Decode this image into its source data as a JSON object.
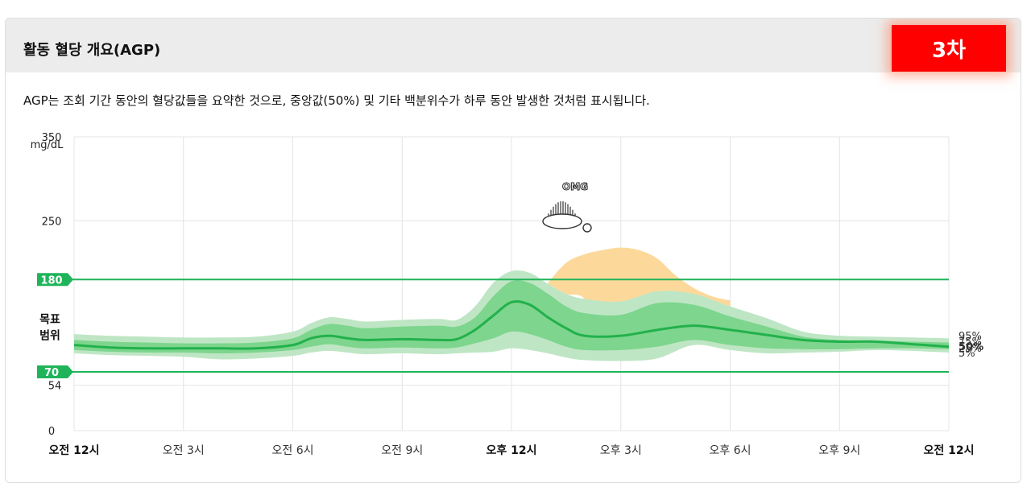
{
  "header": {
    "title": "활동 혈당 개요(AGP)",
    "badge": "3차"
  },
  "description": "AGP는 조회 기간 동안의 혈당값들을 요약한 것으로, 중앙값(50%) 및 기타 백분위수가 하루 동안 발생한 것처럼 표시됩니다.",
  "annotation": {
    "text": "OMG",
    "icon": "hedgehog-sticker-icon"
  },
  "colors": {
    "median": "#22b14c",
    "band_inner": "#7ed58e",
    "band_outer": "#bfe6c4",
    "peak": "#fcd99a",
    "target_line": "#1fb45a",
    "target_label_bg": "#1fb45a"
  },
  "chart_data": {
    "type": "area",
    "ylabel": "mg/dL",
    "ylim": [
      0,
      350
    ],
    "y_ticks": [
      0,
      54,
      250,
      350
    ],
    "target_range": {
      "label": "목표 범위",
      "low": 70,
      "high": 180,
      "low_label": "70",
      "high_label": "180"
    },
    "x_ticks": [
      "오전 12시",
      "오전 3시",
      "오전 6시",
      "오전 9시",
      "오후 12시",
      "오후 3시",
      "오후 6시",
      "오후 9시",
      "오전 12시"
    ],
    "x_ticks_bold": [
      0,
      4,
      8
    ],
    "x": [
      0,
      1,
      2,
      3,
      4,
      5,
      6,
      6.5,
      7,
      7.5,
      8,
      9,
      10,
      10.5,
      11,
      11.5,
      12,
      12.5,
      13,
      13.5,
      14,
      15,
      16,
      17,
      18,
      19,
      20,
      21,
      22,
      23,
      24
    ],
    "series": [
      {
        "name": "95%",
        "values": [
          115,
          113,
          112,
          111,
          111,
          112,
          118,
          128,
          135,
          133,
          130,
          132,
          133,
          132,
          148,
          176,
          190,
          188,
          175,
          163,
          157,
          154,
          166,
          163,
          148,
          134,
          118,
          113,
          112,
          111,
          110
        ]
      },
      {
        "name": "75%",
        "values": [
          108,
          106,
          105,
          104,
          104,
          105,
          110,
          120,
          127,
          125,
          122,
          124,
          125,
          124,
          135,
          160,
          178,
          176,
          163,
          148,
          140,
          138,
          152,
          150,
          136,
          124,
          112,
          108,
          107,
          106,
          105
        ]
      },
      {
        "name": "50%",
        "values": [
          102,
          99,
          98,
          98,
          98,
          98,
          102,
          110,
          113,
          110,
          108,
          109,
          108,
          109,
          120,
          137,
          153,
          150,
          135,
          122,
          113,
          113,
          120,
          125,
          120,
          114,
          108,
          106,
          106,
          103,
          100
        ]
      },
      {
        "name": "25%",
        "values": [
          96,
          94,
          93,
          93,
          92,
          93,
          96,
          100,
          103,
          100,
          98,
          99,
          98,
          99,
          104,
          110,
          118,
          115,
          108,
          100,
          96,
          96,
          100,
          108,
          102,
          98,
          97,
          97,
          98,
          98,
          97
        ]
      },
      {
        "name": "5%",
        "values": [
          92,
          90,
          89,
          88,
          85,
          86,
          89,
          93,
          95,
          93,
          91,
          92,
          91,
          92,
          93,
          94,
          98,
          96,
          92,
          87,
          84,
          83,
          86,
          102,
          96,
          92,
          93,
          94,
          96,
          95,
          93
        ]
      }
    ],
    "peak_region": {
      "x": [
        13,
        13.5,
        14,
        14.5,
        15,
        15.5,
        16,
        16.5,
        17,
        17.5,
        18
      ],
      "values": [
        176,
        200,
        210,
        215,
        218,
        215,
        205,
        185,
        170,
        160,
        155
      ]
    },
    "right_labels": [
      "95%",
      "75%",
      "50%",
      "25%",
      "5%"
    ]
  }
}
